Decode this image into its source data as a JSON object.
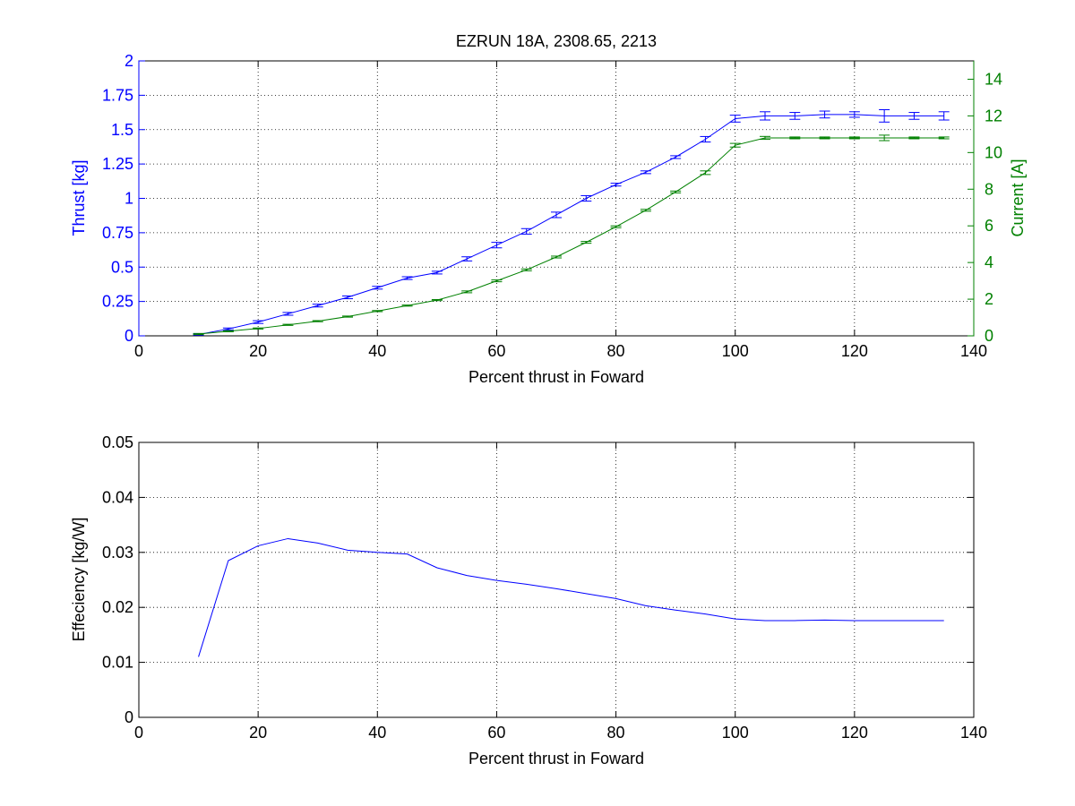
{
  "chart_data": [
    {
      "type": "line",
      "title": "EZRUN 18A, 2308.65, 2213",
      "xlabel": "Percent thrust in Foward",
      "ylabel": "Thrust [kg]",
      "y2label": "Current [A]",
      "xlim": [
        0,
        140
      ],
      "ylim": [
        0,
        2
      ],
      "y2lim": [
        0,
        15
      ],
      "xticks": [
        "0",
        "20",
        "40",
        "60",
        "80",
        "100",
        "120",
        "140"
      ],
      "yticks": [
        "0",
        "0.25",
        "0.5",
        "0.75",
        "1",
        "1.25",
        "1.5",
        "1.75",
        "2"
      ],
      "y2ticks": [
        "0",
        "2",
        "4",
        "6",
        "8",
        "10",
        "12",
        "14"
      ],
      "grid": true,
      "colors": {
        "thrust": "#0000ff",
        "current": "#008000",
        "axes": "#000000"
      },
      "x": [
        10,
        15,
        20,
        25,
        30,
        35,
        40,
        45,
        50,
        55,
        60,
        65,
        70,
        75,
        80,
        85,
        90,
        95,
        100,
        105,
        110,
        115,
        120,
        125,
        130,
        135
      ],
      "series": [
        {
          "axis": "left",
          "color": "#0000ff",
          "values": [
            0.01,
            0.05,
            0.1,
            0.16,
            0.22,
            0.28,
            0.35,
            0.42,
            0.46,
            0.56,
            0.66,
            0.76,
            0.88,
            1.0,
            1.1,
            1.19,
            1.3,
            1.43,
            1.58,
            1.6,
            1.6,
            1.61,
            1.61,
            1.6,
            1.6,
            1.6
          ],
          "errors": [
            0.005,
            0.007,
            0.01,
            0.01,
            0.01,
            0.01,
            0.01,
            0.01,
            0.01,
            0.015,
            0.02,
            0.02,
            0.02,
            0.02,
            0.01,
            0.01,
            0.01,
            0.02,
            0.025,
            0.03,
            0.025,
            0.025,
            0.02,
            0.045,
            0.025,
            0.03
          ]
        },
        {
          "axis": "right",
          "color": "#008000",
          "values": [
            0.1,
            0.25,
            0.4,
            0.6,
            0.8,
            1.05,
            1.35,
            1.65,
            1.95,
            2.4,
            3.0,
            3.6,
            4.3,
            5.1,
            5.95,
            6.85,
            7.85,
            8.9,
            10.4,
            10.8,
            10.8,
            10.8,
            10.8,
            10.8,
            10.8,
            10.8
          ],
          "errors": [
            0.03,
            0.03,
            0.03,
            0.03,
            0.03,
            0.03,
            0.03,
            0.03,
            0.03,
            0.05,
            0.05,
            0.05,
            0.05,
            0.05,
            0.05,
            0.05,
            0.05,
            0.1,
            0.1,
            0.08,
            0.05,
            0.05,
            0.05,
            0.15,
            0.05,
            0.05
          ]
        }
      ]
    },
    {
      "type": "line",
      "title": "",
      "xlabel": "Percent thrust in Foward",
      "ylabel": "Effeciency [kg/W]",
      "xlim": [
        0,
        140
      ],
      "ylim": [
        0,
        0.05
      ],
      "xticks": [
        "0",
        "20",
        "40",
        "60",
        "80",
        "100",
        "120",
        "140"
      ],
      "yticks": [
        "0",
        "0.01",
        "0.02",
        "0.03",
        "0.04",
        "0.05"
      ],
      "grid": true,
      "colors": {
        "line": "#0000ff",
        "axes": "#000000"
      },
      "x": [
        10,
        15,
        20,
        25,
        30,
        35,
        40,
        45,
        50,
        55,
        60,
        65,
        70,
        75,
        80,
        85,
        90,
        95,
        100,
        105,
        110,
        115,
        120,
        125,
        130,
        135
      ],
      "series": [
        {
          "color": "#0000ff",
          "values": [
            0.011,
            0.0285,
            0.0312,
            0.0325,
            0.0317,
            0.0304,
            0.03,
            0.0297,
            0.0272,
            0.0258,
            0.0249,
            0.0242,
            0.0234,
            0.0225,
            0.0216,
            0.0203,
            0.0195,
            0.0188,
            0.0179,
            0.0176,
            0.0176,
            0.0177,
            0.0176,
            0.0176,
            0.0176,
            0.0176
          ]
        }
      ]
    }
  ]
}
